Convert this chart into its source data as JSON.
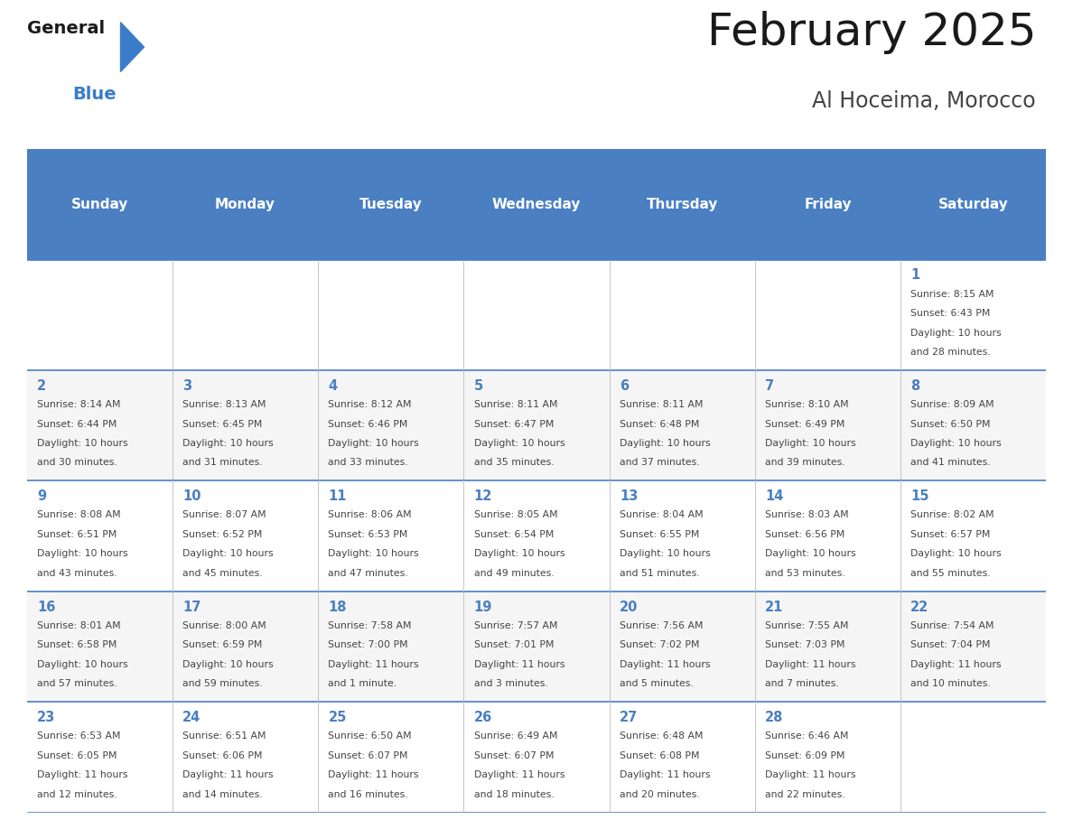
{
  "title": "February 2025",
  "subtitle": "Al Hoceima, Morocco",
  "header_color": "#4a7fc1",
  "header_text_color": "#FFFFFF",
  "days_of_week": [
    "Sunday",
    "Monday",
    "Tuesday",
    "Wednesday",
    "Thursday",
    "Friday",
    "Saturday"
  ],
  "background_color": "#FFFFFF",
  "cell_bg_alt": "#f5f5f5",
  "day_number_color": "#4a7fc1",
  "info_text_color": "#444444",
  "grid_color": "#4a7fc1",
  "logo_general_color": "#1a1a1a",
  "logo_blue_color": "#3a7cc9",
  "logo_triangle_color": "#3a7cc9",
  "title_color": "#1a1a1a",
  "subtitle_color": "#444444",
  "weeks": [
    [
      null,
      null,
      null,
      null,
      null,
      null,
      {
        "day": 1,
        "sunrise": "8:15 AM",
        "sunset": "6:43 PM",
        "daylight_line1": "10 hours",
        "daylight_line2": "and 28 minutes."
      }
    ],
    [
      {
        "day": 2,
        "sunrise": "8:14 AM",
        "sunset": "6:44 PM",
        "daylight_line1": "10 hours",
        "daylight_line2": "and 30 minutes."
      },
      {
        "day": 3,
        "sunrise": "8:13 AM",
        "sunset": "6:45 PM",
        "daylight_line1": "10 hours",
        "daylight_line2": "and 31 minutes."
      },
      {
        "day": 4,
        "sunrise": "8:12 AM",
        "sunset": "6:46 PM",
        "daylight_line1": "10 hours",
        "daylight_line2": "and 33 minutes."
      },
      {
        "day": 5,
        "sunrise": "8:11 AM",
        "sunset": "6:47 PM",
        "daylight_line1": "10 hours",
        "daylight_line2": "and 35 minutes."
      },
      {
        "day": 6,
        "sunrise": "8:11 AM",
        "sunset": "6:48 PM",
        "daylight_line1": "10 hours",
        "daylight_line2": "and 37 minutes."
      },
      {
        "day": 7,
        "sunrise": "8:10 AM",
        "sunset": "6:49 PM",
        "daylight_line1": "10 hours",
        "daylight_line2": "and 39 minutes."
      },
      {
        "day": 8,
        "sunrise": "8:09 AM",
        "sunset": "6:50 PM",
        "daylight_line1": "10 hours",
        "daylight_line2": "and 41 minutes."
      }
    ],
    [
      {
        "day": 9,
        "sunrise": "8:08 AM",
        "sunset": "6:51 PM",
        "daylight_line1": "10 hours",
        "daylight_line2": "and 43 minutes."
      },
      {
        "day": 10,
        "sunrise": "8:07 AM",
        "sunset": "6:52 PM",
        "daylight_line1": "10 hours",
        "daylight_line2": "and 45 minutes."
      },
      {
        "day": 11,
        "sunrise": "8:06 AM",
        "sunset": "6:53 PM",
        "daylight_line1": "10 hours",
        "daylight_line2": "and 47 minutes."
      },
      {
        "day": 12,
        "sunrise": "8:05 AM",
        "sunset": "6:54 PM",
        "daylight_line1": "10 hours",
        "daylight_line2": "and 49 minutes."
      },
      {
        "day": 13,
        "sunrise": "8:04 AM",
        "sunset": "6:55 PM",
        "daylight_line1": "10 hours",
        "daylight_line2": "and 51 minutes."
      },
      {
        "day": 14,
        "sunrise": "8:03 AM",
        "sunset": "6:56 PM",
        "daylight_line1": "10 hours",
        "daylight_line2": "and 53 minutes."
      },
      {
        "day": 15,
        "sunrise": "8:02 AM",
        "sunset": "6:57 PM",
        "daylight_line1": "10 hours",
        "daylight_line2": "and 55 minutes."
      }
    ],
    [
      {
        "day": 16,
        "sunrise": "8:01 AM",
        "sunset": "6:58 PM",
        "daylight_line1": "10 hours",
        "daylight_line2": "and 57 minutes."
      },
      {
        "day": 17,
        "sunrise": "8:00 AM",
        "sunset": "6:59 PM",
        "daylight_line1": "10 hours",
        "daylight_line2": "and 59 minutes."
      },
      {
        "day": 18,
        "sunrise": "7:58 AM",
        "sunset": "7:00 PM",
        "daylight_line1": "11 hours",
        "daylight_line2": "and 1 minute."
      },
      {
        "day": 19,
        "sunrise": "7:57 AM",
        "sunset": "7:01 PM",
        "daylight_line1": "11 hours",
        "daylight_line2": "and 3 minutes."
      },
      {
        "day": 20,
        "sunrise": "7:56 AM",
        "sunset": "7:02 PM",
        "daylight_line1": "11 hours",
        "daylight_line2": "and 5 minutes."
      },
      {
        "day": 21,
        "sunrise": "7:55 AM",
        "sunset": "7:03 PM",
        "daylight_line1": "11 hours",
        "daylight_line2": "and 7 minutes."
      },
      {
        "day": 22,
        "sunrise": "7:54 AM",
        "sunset": "7:04 PM",
        "daylight_line1": "11 hours",
        "daylight_line2": "and 10 minutes."
      }
    ],
    [
      {
        "day": 23,
        "sunrise": "6:53 AM",
        "sunset": "6:05 PM",
        "daylight_line1": "11 hours",
        "daylight_line2": "and 12 minutes."
      },
      {
        "day": 24,
        "sunrise": "6:51 AM",
        "sunset": "6:06 PM",
        "daylight_line1": "11 hours",
        "daylight_line2": "and 14 minutes."
      },
      {
        "day": 25,
        "sunrise": "6:50 AM",
        "sunset": "6:07 PM",
        "daylight_line1": "11 hours",
        "daylight_line2": "and 16 minutes."
      },
      {
        "day": 26,
        "sunrise": "6:49 AM",
        "sunset": "6:07 PM",
        "daylight_line1": "11 hours",
        "daylight_line2": "and 18 minutes."
      },
      {
        "day": 27,
        "sunrise": "6:48 AM",
        "sunset": "6:08 PM",
        "daylight_line1": "11 hours",
        "daylight_line2": "and 20 minutes."
      },
      {
        "day": 28,
        "sunrise": "6:46 AM",
        "sunset": "6:09 PM",
        "daylight_line1": "11 hours",
        "daylight_line2": "and 22 minutes."
      },
      null
    ]
  ]
}
